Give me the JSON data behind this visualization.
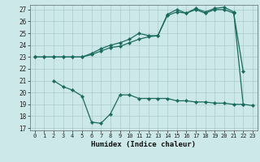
{
  "xlabel": "Humidex (Indice chaleur)",
  "bg_color": "#cce8e8",
  "grid_color": "#aacccc",
  "line_color": "#1a6b5e",
  "ylim": [
    16.8,
    27.4
  ],
  "xlim": [
    -0.5,
    23.5
  ],
  "yticks": [
    17,
    18,
    19,
    20,
    21,
    22,
    23,
    24,
    25,
    26,
    27
  ],
  "xticks": [
    0,
    1,
    2,
    3,
    4,
    5,
    6,
    7,
    8,
    9,
    10,
    11,
    12,
    13,
    14,
    15,
    16,
    17,
    18,
    19,
    20,
    21,
    22,
    23
  ],
  "line1_x": [
    0,
    1,
    2,
    3,
    4,
    5,
    6,
    7,
    8,
    9,
    10,
    11,
    12,
    13,
    14,
    15,
    16,
    17,
    18,
    19,
    20,
    21,
    22
  ],
  "line1_y": [
    23,
    23,
    23,
    23,
    23,
    23,
    23.2,
    23.5,
    23.8,
    23.9,
    24.2,
    24.5,
    24.7,
    24.8,
    26.5,
    26.8,
    26.7,
    27.0,
    26.7,
    27.0,
    27.0,
    26.7,
    21.8
  ],
  "line2_x": [
    0,
    1,
    2,
    3,
    4,
    5,
    6,
    7,
    8,
    9,
    10,
    11,
    12,
    13,
    14,
    15,
    16,
    17,
    18,
    19,
    20,
    21,
    22
  ],
  "line2_y": [
    23,
    23,
    23,
    23,
    23,
    23,
    23.3,
    23.7,
    24.0,
    24.2,
    24.5,
    25.0,
    24.8,
    24.8,
    26.6,
    27.0,
    26.7,
    27.1,
    26.8,
    27.1,
    27.2,
    26.8,
    19.0
  ],
  "line3_x": [
    2,
    3,
    4,
    5,
    6,
    7,
    8,
    9,
    10,
    11,
    12,
    13,
    14,
    15,
    16,
    17,
    18,
    19,
    20,
    21,
    22,
    23
  ],
  "line3_y": [
    21.0,
    20.5,
    20.2,
    19.7,
    17.5,
    17.4,
    18.2,
    19.8,
    19.8,
    19.5,
    19.5,
    19.5,
    19.5,
    19.3,
    19.3,
    19.2,
    19.2,
    19.1,
    19.1,
    19.0,
    19.0,
    18.9
  ]
}
